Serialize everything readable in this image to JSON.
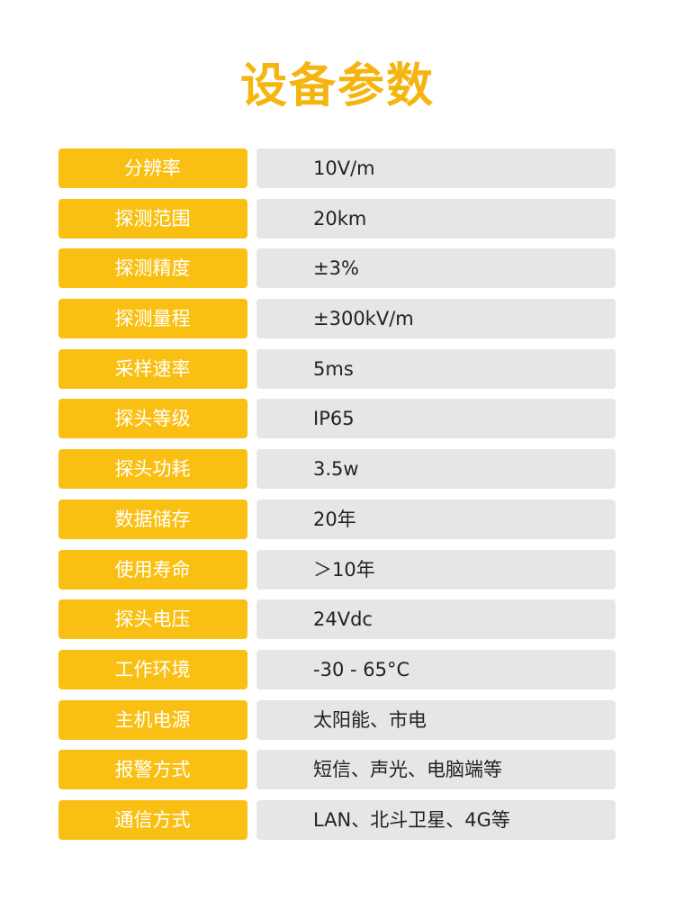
{
  "title": "设备参数",
  "colors": {
    "accent": "#F9C013",
    "value_bg": "#E6E6E4"
  },
  "params": [
    {
      "label": "分辨率",
      "value": "10V/m"
    },
    {
      "label": "探测范围",
      "value": "20km"
    },
    {
      "label": "探测精度",
      "value": "±3%"
    },
    {
      "label": "探测量程",
      "value": "±300kV/m"
    },
    {
      "label": "采样速率",
      "value": "5ms"
    },
    {
      "label": "探头等级",
      "value": "IP65"
    },
    {
      "label": "探头功耗",
      "value": "3.5w"
    },
    {
      "label": "数据储存",
      "value": "20年"
    },
    {
      "label": "使用寿命",
      "value": "＞10年"
    },
    {
      "label": "探头电压",
      "value": "24Vdc"
    },
    {
      "label": "工作环境",
      "value": "-30 - 65°C"
    },
    {
      "label": "主机电源",
      "value": "太阳能、市电"
    },
    {
      "label": "报警方式",
      "value": "短信、声光、电脑端等"
    },
    {
      "label": "通信方式",
      "value": "LAN、北斗卫星、4G等"
    }
  ]
}
